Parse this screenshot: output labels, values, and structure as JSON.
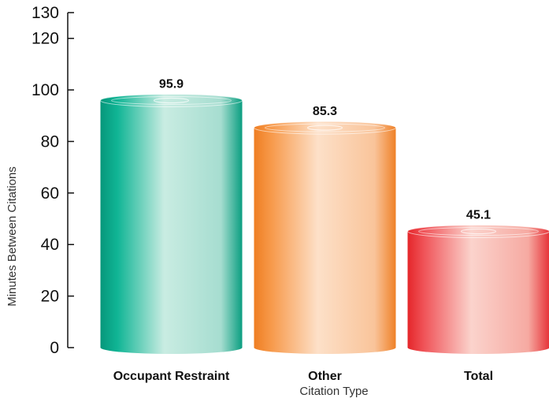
{
  "chart_data": {
    "type": "bar",
    "title": "",
    "xlabel": "Citation Type",
    "ylabel": "Minutes Between Citations",
    "categories": [
      "Occupant Restraint",
      "Other",
      "Total"
    ],
    "values": [
      95.9,
      85.3,
      45.1
    ],
    "value_labels": [
      "95.9",
      "85.3",
      "45.1"
    ],
    "ylim": [
      0,
      130
    ],
    "yticks": [
      0,
      20,
      40,
      60,
      80,
      100,
      120,
      130
    ],
    "grid": false,
    "colors": [
      "#0aa88c",
      "#f5913e",
      "#ee3b3b"
    ],
    "style": "3d-cylinder"
  }
}
